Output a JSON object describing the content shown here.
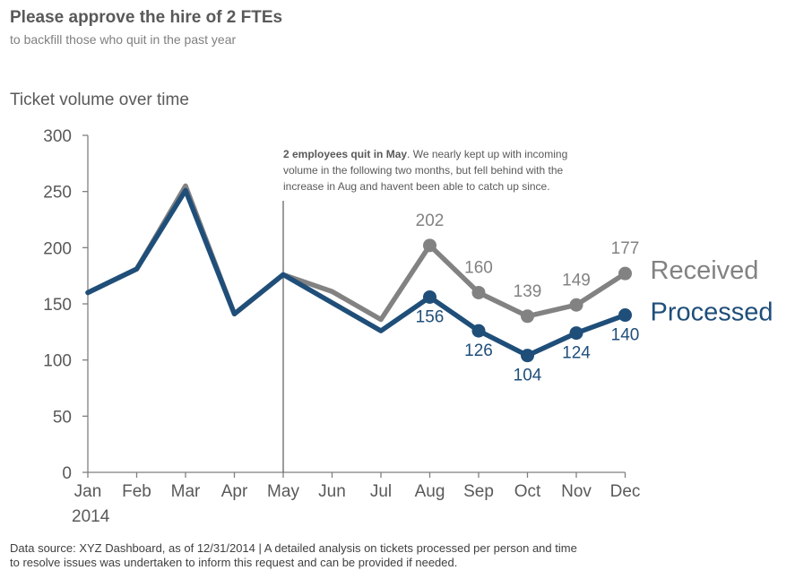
{
  "header": {
    "title": "Please approve the hire of 2 FTEs",
    "subtitle": "to backfill those who quit in the past year"
  },
  "chart_heading": "Ticket volume over time",
  "footnote": "Data source: XYZ Dashboard, as of 12/31/2014 | A detailed analysis on tickets processed per person and time to resolve issues was undertaken to inform this request and can be provided if needed.",
  "colors": {
    "received": "#828282",
    "processed": "#1f4e79",
    "axis": "#7f7f7f",
    "text": "#595959"
  },
  "chart_data": {
    "type": "line",
    "title": "Ticket volume over time",
    "categories": [
      "Jan",
      "Feb",
      "Mar",
      "Apr",
      "May",
      "Jun",
      "Jul",
      "Aug",
      "Sep",
      "Oct",
      "Nov",
      "Dec"
    ],
    "year_label": "2014",
    "yticks": [
      0,
      50,
      100,
      150,
      200,
      250,
      300
    ],
    "ylim": [
      0,
      300
    ],
    "grid": false,
    "series": [
      {
        "name": "Received",
        "values": [
          160,
          181,
          255,
          141,
          176,
          161,
          136,
          202,
          160,
          139,
          149,
          177
        ],
        "labeled_from": 7
      },
      {
        "name": "Processed",
        "values": [
          160,
          181,
          251,
          141,
          176,
          151,
          126,
          156,
          126,
          104,
          124,
          140
        ],
        "labeled_from": 7
      }
    ],
    "annotation": {
      "at_category": "May",
      "bold_text": "2 employees quit in May",
      "lines": [
        ". We nearly kept up with incoming",
        "volume in the following two months, but fell behind with the",
        "increase in Aug and havent been able to catch up since."
      ]
    }
  }
}
